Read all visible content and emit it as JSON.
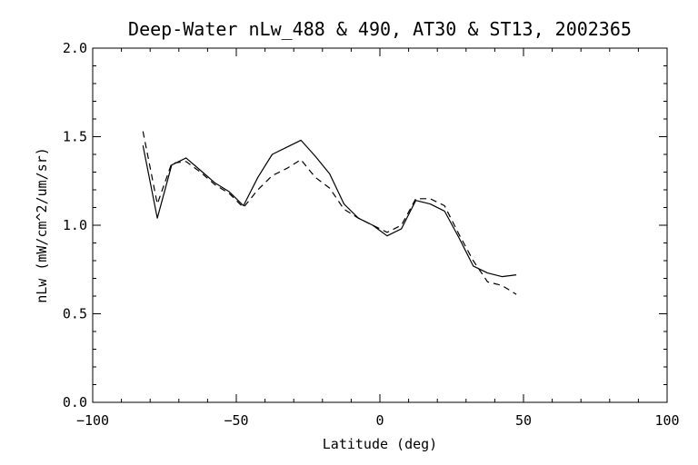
{
  "chart_data": {
    "type": "line",
    "title": "Deep-Water nLw_488 & 490, AT30 & ST13, 2002365",
    "xlabel": "Latitude (deg)",
    "ylabel": "nLw (mW/cm^2/um/sr)",
    "xlim": [
      -100,
      100
    ],
    "ylim": [
      0.0,
      2.0
    ],
    "x_ticks": [
      -100,
      -50,
      0,
      50,
      100
    ],
    "x_tick_labels": [
      "−100",
      "−50",
      "0",
      "50",
      "100"
    ],
    "y_ticks": [
      0.0,
      0.5,
      1.0,
      1.5,
      2.0
    ],
    "y_tick_labels": [
      "0.0",
      "0.5",
      "1.0",
      "1.5",
      "2.0"
    ],
    "grid": false,
    "legend": "none",
    "series": [
      {
        "style": "solid",
        "color": "#000000",
        "x": [
          -82.5,
          -77.5,
          -72.5,
          -67.5,
          -62.5,
          -57.5,
          -52.5,
          -47.5,
          -42.5,
          -37.5,
          -32.5,
          -27.5,
          -22.5,
          -17.5,
          -12.5,
          -7.5,
          -2.5,
          2.5,
          7.5,
          12.5,
          17.5,
          22.5,
          27.5,
          32.5,
          37.5,
          42.5,
          47.5
        ],
        "y": [
          1.45,
          1.04,
          1.34,
          1.38,
          1.31,
          1.24,
          1.19,
          1.11,
          1.27,
          1.4,
          1.44,
          1.48,
          1.39,
          1.29,
          1.12,
          1.04,
          1.0,
          0.94,
          0.98,
          1.14,
          1.12,
          1.08,
          0.93,
          0.77,
          0.73,
          0.71,
          0.72
        ]
      },
      {
        "style": "dashed",
        "color": "#000000",
        "x": [
          -82.5,
          -77.5,
          -72.5,
          -67.5,
          -62.5,
          -57.5,
          -52.5,
          -47.5,
          -42.5,
          -37.5,
          -32.5,
          -27.5,
          -22.5,
          -17.5,
          -12.5,
          -7.5,
          -2.5,
          2.5,
          7.5,
          12.5,
          17.5,
          22.5,
          27.5,
          32.5,
          37.5,
          42.5,
          47.5
        ],
        "y": [
          1.53,
          1.12,
          1.35,
          1.36,
          1.3,
          1.23,
          1.18,
          1.1,
          1.2,
          1.28,
          1.32,
          1.37,
          1.27,
          1.21,
          1.09,
          1.04,
          1.0,
          0.96,
          1.0,
          1.15,
          1.15,
          1.11,
          0.95,
          0.8,
          0.68,
          0.66,
          0.61
        ]
      }
    ]
  }
}
